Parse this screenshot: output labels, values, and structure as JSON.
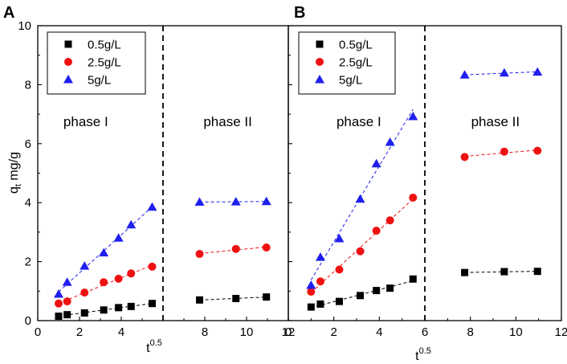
{
  "chart_data": [
    {
      "panel_label": "A",
      "type": "scatter",
      "xlabel_base": "t",
      "xlabel_exp": "0.5",
      "ylabel": "q mg/g",
      "ylabel_base": "q",
      "ylabel_sub": "t",
      "ylabel_unit": "mg/g",
      "xlim": [
        0,
        12
      ],
      "ylim": [
        0,
        10
      ],
      "xticks": [
        0,
        2,
        4,
        6,
        8,
        10,
        12
      ],
      "xtick_labels": [
        "0",
        "2",
        "4",
        "",
        "8",
        "10",
        "12"
      ],
      "yticks": [
        0,
        2,
        4,
        6,
        8,
        10
      ],
      "ytick_labels": [
        "0",
        "2",
        "4",
        "6",
        "8",
        "10"
      ],
      "divider_x": 6,
      "phase_labels": [
        {
          "text": "phase I",
          "x": 2.3,
          "y": 6.6
        },
        {
          "text": "phase II",
          "x": 9.1,
          "y": 6.6
        }
      ],
      "legend": [
        {
          "name": "0.5g/L",
          "marker": "square",
          "color": "#000000"
        },
        {
          "name": "2.5g/L",
          "marker": "circle",
          "color": "#ee1111"
        },
        {
          "name": "5g/L",
          "marker": "triangle",
          "color": "#1f1fee"
        }
      ],
      "series": [
        {
          "name": "0.5g/L",
          "marker": "square",
          "color": "#000000",
          "phase1": {
            "x": [
              1.0,
              1.41,
              2.24,
              3.16,
              3.87,
              4.47,
              5.48
            ],
            "y": [
              0.15,
              0.2,
              0.26,
              0.36,
              0.44,
              0.48,
              0.58
            ]
          },
          "phase2": {
            "x": [
              7.75,
              9.49,
              10.95
            ],
            "y": [
              0.7,
              0.75,
              0.8
            ]
          }
        },
        {
          "name": "2.5g/L",
          "marker": "circle",
          "color": "#ee1111",
          "phase1": {
            "x": [
              1.0,
              1.41,
              2.24,
              3.16,
              3.87,
              4.47,
              5.48
            ],
            "y": [
              0.58,
              0.65,
              0.95,
              1.3,
              1.42,
              1.6,
              1.83
            ]
          },
          "phase2": {
            "x": [
              7.75,
              9.49,
              10.95
            ],
            "y": [
              2.26,
              2.43,
              2.48
            ]
          }
        },
        {
          "name": "5g/L",
          "marker": "triangle",
          "color": "#1f1fee",
          "phase1": {
            "x": [
              1.0,
              1.41,
              2.24,
              3.16,
              3.87,
              4.47,
              5.48
            ],
            "y": [
              0.9,
              1.3,
              1.85,
              2.3,
              2.8,
              3.25,
              3.85
            ]
          },
          "phase2": {
            "x": [
              7.75,
              9.49,
              10.95
            ],
            "y": [
              4.02,
              4.03,
              4.04
            ]
          }
        }
      ]
    },
    {
      "panel_label": "B",
      "type": "scatter",
      "xlabel_base": "t",
      "xlabel_exp": "0.5",
      "xlim": [
        0,
        12
      ],
      "ylim": [
        0,
        10
      ],
      "xticks": [
        0,
        2,
        4,
        6,
        8,
        10,
        12
      ],
      "xtick_labels": [
        "0",
        "2",
        "4",
        "6",
        "8",
        "10",
        "12"
      ],
      "yticks": [
        0,
        2,
        4,
        6,
        8,
        10
      ],
      "divider_x": 6,
      "phase_labels": [
        {
          "text": "phase I",
          "x": 3.1,
          "y": 6.6
        },
        {
          "text": "phase II",
          "x": 9.1,
          "y": 6.6
        }
      ],
      "legend": [
        {
          "name": "0.5g/L",
          "marker": "square",
          "color": "#000000"
        },
        {
          "name": "2.5g/L",
          "marker": "circle",
          "color": "#ee1111"
        },
        {
          "name": "5g/L",
          "marker": "triangle",
          "color": "#1f1fee"
        }
      ],
      "series": [
        {
          "name": "0.5g/L",
          "marker": "square",
          "color": "#000000",
          "phase1": {
            "x": [
              1.0,
              1.41,
              2.24,
              3.16,
              3.87,
              4.47,
              5.48
            ],
            "y": [
              0.46,
              0.56,
              0.65,
              0.85,
              1.02,
              1.1,
              1.41
            ]
          },
          "phase2": {
            "x": [
              7.75,
              9.49,
              10.95
            ],
            "y": [
              1.63,
              1.66,
              1.67
            ]
          }
        },
        {
          "name": "2.5g/L",
          "marker": "circle",
          "color": "#ee1111",
          "phase1": {
            "x": [
              1.0,
              1.41,
              2.24,
              3.16,
              3.87,
              4.47,
              5.48
            ],
            "y": [
              0.98,
              1.33,
              1.73,
              2.35,
              3.05,
              3.4,
              4.17
            ]
          },
          "phase2": {
            "x": [
              7.75,
              9.49,
              10.95
            ],
            "y": [
              5.55,
              5.73,
              5.76
            ]
          }
        },
        {
          "name": "5g/L",
          "marker": "triangle",
          "color": "#1f1fee",
          "phase1": {
            "x": [
              1.0,
              1.41,
              2.24,
              3.16,
              3.87,
              4.47,
              5.48
            ],
            "y": [
              1.2,
              2.15,
              2.78,
              4.12,
              5.32,
              6.05,
              6.92
            ]
          },
          "phase2": {
            "x": [
              7.75,
              9.49,
              10.95
            ],
            "y": [
              8.33,
              8.4,
              8.43
            ]
          }
        }
      ]
    }
  ]
}
